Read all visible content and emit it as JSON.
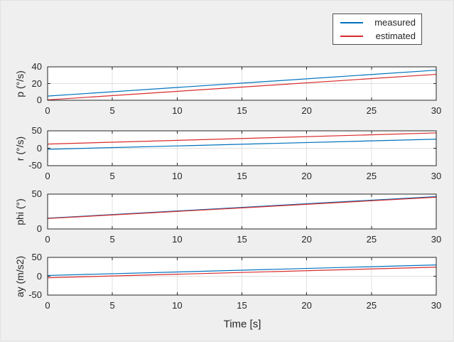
{
  "figure": {
    "background": "#efefef",
    "axes_background": "#ffffff",
    "axes_border_color": "#262626",
    "grid_color": "#e0e0e0",
    "text_color": "#262626"
  },
  "xlabel": "Time [s]",
  "legend": {
    "position": "top-right",
    "entries": [
      {
        "label": "measured",
        "color": "#0072BD"
      },
      {
        "label": "estimated",
        "color": "#D92B2B"
      }
    ]
  },
  "chart_data": [
    {
      "type": "line",
      "ylabel": "p (°/s)",
      "xlim": [
        0,
        30
      ],
      "ylim": [
        0,
        40
      ],
      "xticks": [
        0,
        5,
        10,
        15,
        20,
        25,
        30
      ],
      "yticks": [
        0,
        20,
        40
      ],
      "grid": true,
      "series": [
        {
          "name": "measured",
          "color": "#0072BD",
          "x": [
            0,
            30
          ],
          "y": [
            5,
            36
          ]
        },
        {
          "name": "estimated",
          "color": "#D92B2B",
          "x": [
            0,
            30
          ],
          "y": [
            0.5,
            31
          ]
        }
      ]
    },
    {
      "type": "line",
      "ylabel": "r (°/s)",
      "xlim": [
        0,
        30
      ],
      "ylim": [
        -50,
        50
      ],
      "xticks": [
        0,
        5,
        10,
        15,
        20,
        25,
        30
      ],
      "yticks": [
        -50,
        0,
        50
      ],
      "grid": true,
      "series": [
        {
          "name": "measured",
          "color": "#0072BD",
          "x": [
            0,
            30
          ],
          "y": [
            -3,
            26
          ]
        },
        {
          "name": "estimated",
          "color": "#D92B2B",
          "x": [
            0,
            30
          ],
          "y": [
            12,
            44
          ]
        }
      ]
    },
    {
      "type": "line",
      "ylabel": "phi (°)",
      "xlim": [
        0,
        30
      ],
      "ylim": [
        0,
        50
      ],
      "xticks": [
        0,
        5,
        10,
        15,
        20,
        25,
        30
      ],
      "yticks": [
        0,
        50
      ],
      "grid": true,
      "series": [
        {
          "name": "measured",
          "color": "#0072BD",
          "x": [
            0,
            30
          ],
          "y": [
            15.5,
            46.5
          ]
        },
        {
          "name": "estimated",
          "color": "#D92B2B",
          "x": [
            0,
            30
          ],
          "y": [
            15,
            45.5
          ]
        }
      ]
    },
    {
      "type": "line",
      "ylabel": "ay (m/s2)",
      "xlim": [
        0,
        30
      ],
      "ylim": [
        -50,
        50
      ],
      "xticks": [
        0,
        5,
        10,
        15,
        20,
        25,
        30
      ],
      "yticks": [
        -50,
        0,
        50
      ],
      "grid": true,
      "series": [
        {
          "name": "measured",
          "color": "#0072BD",
          "x": [
            0,
            30
          ],
          "y": [
            2,
            30
          ]
        },
        {
          "name": "estimated",
          "color": "#D92B2B",
          "x": [
            0,
            30
          ],
          "y": [
            -4,
            24
          ]
        }
      ]
    }
  ]
}
